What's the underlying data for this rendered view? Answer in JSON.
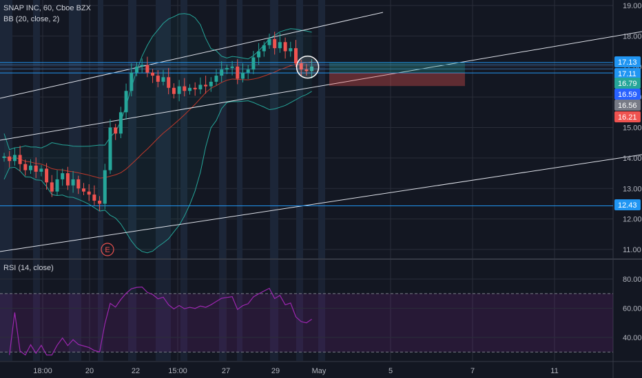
{
  "header": {
    "symbol_line": "SNAP INC, 60, Cboe BZX",
    "bb_line": "BB (20, close, 2)",
    "rsi_line": "RSI (14, close)"
  },
  "colors": {
    "background": "#131722",
    "grid": "#2a2e39",
    "up": "#26a69a",
    "down": "#ef5350",
    "bb_band": "#26a69a",
    "bb_basis": "#c0392b",
    "rsi": "#9c27b0",
    "level_line": "#2196f3",
    "channel_line": "#e0e3eb",
    "axis_text": "#b2b5be"
  },
  "chart_data": [
    {
      "type": "candlestick",
      "title": "SNAP INC, 60, Cboe BZX",
      "indicator": "BB (20, close, 2)",
      "y_axis_ticks": [
        "11.00",
        "12.00",
        "13.00",
        "14.00",
        "15.00",
        "16.00",
        "17.00",
        "18.00",
        "19.00"
      ],
      "ylim": [
        10.8,
        19.2
      ],
      "x_axis_ticks": [
        "18:00",
        "20",
        "22",
        "15:00",
        "27",
        "29",
        "May",
        "5",
        "7",
        "11"
      ],
      "close_path": [
        [
          "Apr 17",
          14.05
        ],
        [
          "Apr 17",
          13.9
        ],
        [
          "Apr 17",
          14.1
        ],
        [
          "Apr 17",
          13.8
        ],
        [
          "Apr 18",
          13.6
        ],
        [
          "Apr 18",
          13.75
        ],
        [
          "Apr 18",
          13.55
        ],
        [
          "Apr 18",
          13.65
        ],
        [
          "Apr 19",
          13.2
        ],
        [
          "Apr 19",
          12.9
        ],
        [
          "Apr 19",
          13.3
        ],
        [
          "Apr 19",
          13.5
        ],
        [
          "Apr 20",
          13.1
        ],
        [
          "Apr 20",
          13.3
        ],
        [
          "Apr 20",
          13.0
        ],
        [
          "Apr 20",
          12.9
        ],
        [
          "Apr 21",
          12.8
        ],
        [
          "Apr 21",
          12.6
        ],
        [
          "Apr 21",
          12.5
        ],
        [
          "Apr 22",
          13.6
        ],
        [
          "Apr 22",
          15.0
        ],
        [
          "Apr 22",
          14.8
        ],
        [
          "Apr 22",
          15.5
        ],
        [
          "Apr 23",
          16.2
        ],
        [
          "Apr 23",
          16.8
        ],
        [
          "Apr 23",
          17.0
        ],
        [
          "Apr 23",
          17.05
        ],
        [
          "Apr 24",
          16.8
        ],
        [
          "Apr 24",
          16.7
        ],
        [
          "Apr 24",
          16.5
        ],
        [
          "Apr 24",
          16.65
        ],
        [
          "Apr 25",
          16.3
        ],
        [
          "Apr 25",
          16.1
        ],
        [
          "Apr 25",
          16.35
        ],
        [
          "Apr 25",
          16.2
        ],
        [
          "Apr 26",
          16.3
        ],
        [
          "Apr 26",
          16.25
        ],
        [
          "Apr 26",
          16.4
        ],
        [
          "Apr 26",
          16.35
        ],
        [
          "Apr 27",
          16.5
        ],
        [
          "Apr 27",
          16.7
        ],
        [
          "Apr 27",
          16.9
        ],
        [
          "Apr 27",
          16.95
        ],
        [
          "Apr 28",
          17.0
        ],
        [
          "Apr 28",
          16.6
        ],
        [
          "Apr 28",
          16.8
        ],
        [
          "Apr 28",
          16.9
        ],
        [
          "Apr 29",
          17.3
        ],
        [
          "Apr 29",
          17.5
        ],
        [
          "Apr 29",
          17.7
        ],
        [
          "Apr 29",
          17.9
        ],
        [
          "Apr 30",
          17.6
        ],
        [
          "Apr 30",
          17.8
        ],
        [
          "Apr 30",
          17.5
        ],
        [
          "Apr 30",
          17.6
        ],
        [
          "May 1",
          17.1
        ],
        [
          "May 1",
          16.9
        ],
        [
          "May 1",
          16.85
        ],
        [
          "May 1",
          17.0
        ]
      ],
      "price_lines": [
        {
          "label": "17.13",
          "value": 17.13
        },
        {
          "label": "17.11",
          "value": 17.11
        },
        {
          "label": "16.79",
          "value": 16.79
        },
        {
          "label": "16.59",
          "value": 16.59
        },
        {
          "label": "16.56",
          "value": 16.56
        },
        {
          "label": "16.21",
          "value": 16.21
        },
        {
          "label": "12.43",
          "value": 12.43
        }
      ],
      "markers": [
        {
          "label": "E",
          "position": "below Apr 21 candles"
        }
      ]
    },
    {
      "type": "line",
      "title": "RSI (14, close)",
      "y_axis_ticks": [
        "40.00",
        "60.00",
        "80.00"
      ],
      "ylim": [
        27,
        88
      ],
      "bands": [
        30,
        70
      ]
    }
  ]
}
